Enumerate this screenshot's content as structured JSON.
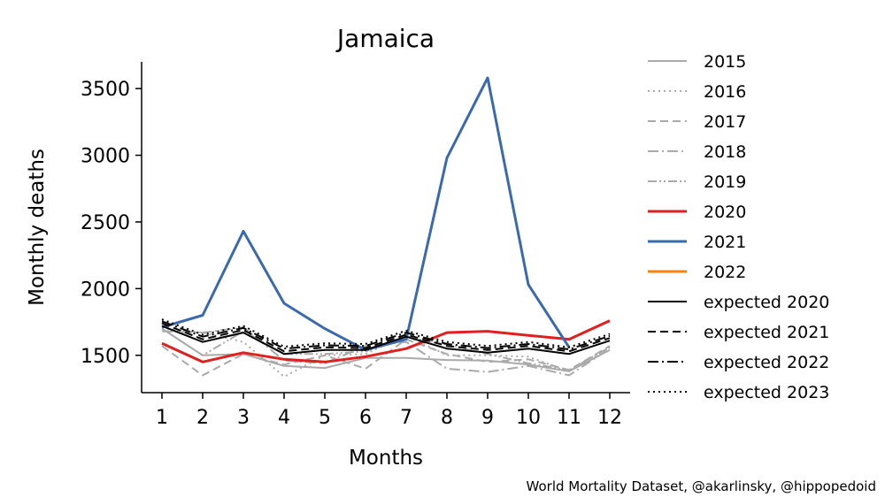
{
  "chart_data": {
    "type": "line",
    "title": "Jamaica",
    "xlabel": "Months",
    "ylabel": "Monthly deaths",
    "x": [
      1,
      2,
      3,
      4,
      5,
      6,
      7,
      8,
      9,
      10,
      11,
      12
    ],
    "xlim": [
      0.5,
      12.5
    ],
    "ylim": [
      1220,
      3700
    ],
    "yticks": [
      1500,
      2000,
      2500,
      3000,
      3500
    ],
    "grid": false,
    "legend_position": "outside-right",
    "series": [
      {
        "name": "2015",
        "color": "#aaaaaa",
        "dash": "solid",
        "width": 2,
        "values": [
          1700,
          1500,
          1510,
          1420,
          1405,
          1480,
          1480,
          1465,
          1460,
          1430,
          1380,
          1540
        ]
      },
      {
        "name": "2016",
        "color": "#aaaaaa",
        "dash": "dotted",
        "width": 2,
        "values": [
          1700,
          1670,
          1600,
          1340,
          1500,
          1510,
          1650,
          1500,
          1500,
          1490,
          1380,
          1560
        ]
      },
      {
        "name": "2017",
        "color": "#aaaaaa",
        "dash": "dashed",
        "width": 2,
        "values": [
          1570,
          1350,
          1510,
          1430,
          1500,
          1400,
          1620,
          1510,
          1450,
          1470,
          1390,
          1570
        ]
      },
      {
        "name": "2018",
        "color": "#aaaaaa",
        "dash": "dashdot",
        "width": 2,
        "values": [
          1680,
          1670,
          1710,
          1460,
          1440,
          1570,
          1600,
          1400,
          1375,
          1420,
          1350,
          1550
        ]
      },
      {
        "name": "2019",
        "color": "#aaaaaa",
        "dash": "dashdotdot",
        "width": 2,
        "values": [
          1700,
          1500,
          1680,
          1510,
          1510,
          1530,
          1640,
          1580,
          1510,
          1440,
          1390,
          1560
        ]
      },
      {
        "name": "2020",
        "color": "#e0201e",
        "dash": "solid",
        "width": 3,
        "values": [
          1590,
          1450,
          1520,
          1470,
          1450,
          1490,
          1550,
          1670,
          1680,
          1650,
          1620,
          1760
        ]
      },
      {
        "name": "2021",
        "color": "#3a6aad",
        "dash": "solid",
        "width": 3,
        "values": [
          1710,
          1800,
          2430,
          1890,
          1700,
          1540,
          1620,
          2980,
          3580,
          2030,
          1560,
          null
        ]
      },
      {
        "name": "2022",
        "color": "#ff7f0e",
        "dash": "solid",
        "width": 3,
        "values": [
          null,
          null,
          null,
          null,
          null,
          null,
          null,
          null,
          null,
          null,
          null,
          null
        ]
      },
      {
        "name": "expected 2020",
        "color": "#000000",
        "dash": "solid",
        "width": 2,
        "values": [
          1720,
          1600,
          1670,
          1510,
          1540,
          1540,
          1640,
          1550,
          1520,
          1550,
          1510,
          1610
        ]
      },
      {
        "name": "expected 2021",
        "color": "#000000",
        "dash": "dashed",
        "width": 2,
        "values": [
          1740,
          1620,
          1690,
          1530,
          1560,
          1555,
          1655,
          1570,
          1540,
          1570,
          1530,
          1630
        ]
      },
      {
        "name": "expected 2022",
        "color": "#000000",
        "dash": "dashdot",
        "width": 2,
        "values": [
          1755,
          1640,
          1705,
          1550,
          1575,
          1570,
          1670,
          1585,
          1555,
          1585,
          1545,
          1645
        ]
      },
      {
        "name": "expected 2023",
        "color": "#000000",
        "dash": "dotted",
        "width": 2,
        "values": [
          1770,
          1655,
          1720,
          1565,
          1590,
          1585,
          1685,
          1600,
          1570,
          1600,
          1560,
          1660
        ]
      }
    ]
  },
  "credit": "World Mortality Dataset, @akarlinsky, @hippopedoid"
}
